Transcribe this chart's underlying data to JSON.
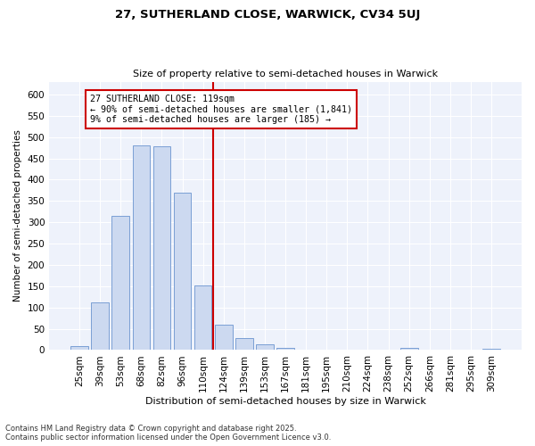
{
  "title1": "27, SUTHERLAND CLOSE, WARWICK, CV34 5UJ",
  "title2": "Size of property relative to semi-detached houses in Warwick",
  "xlabel": "Distribution of semi-detached houses by size in Warwick",
  "ylabel": "Number of semi-detached properties",
  "bin_labels": [
    "25sqm",
    "39sqm",
    "53sqm",
    "68sqm",
    "82sqm",
    "96sqm",
    "110sqm",
    "124sqm",
    "139sqm",
    "153sqm",
    "167sqm",
    "181sqm",
    "195sqm",
    "210sqm",
    "224sqm",
    "238sqm",
    "252sqm",
    "266sqm",
    "281sqm",
    "295sqm",
    "309sqm"
  ],
  "bar_values": [
    10,
    112,
    315,
    480,
    478,
    370,
    152,
    60,
    28,
    14,
    5,
    2,
    1,
    1,
    0,
    0,
    5,
    1,
    0,
    1,
    4
  ],
  "bar_color": "#ccd9f0",
  "bar_edge_color": "#7a9fd4",
  "vline_color": "#cc0000",
  "annotation_title": "27 SUTHERLAND CLOSE: 119sqm",
  "annotation_line1": "← 90% of semi-detached houses are smaller (1,841)",
  "annotation_line2": "9% of semi-detached houses are larger (185) →",
  "annotation_box_color": "#ffffff",
  "annotation_box_edge": "#cc0000",
  "footer_line1": "Contains HM Land Registry data © Crown copyright and database right 2025.",
  "footer_line2": "Contains public sector information licensed under the Open Government Licence v3.0.",
  "bg_color": "#eef2fb",
  "ylim": [
    0,
    630
  ],
  "yticks": [
    0,
    50,
    100,
    150,
    200,
    250,
    300,
    350,
    400,
    450,
    500,
    550,
    600
  ]
}
